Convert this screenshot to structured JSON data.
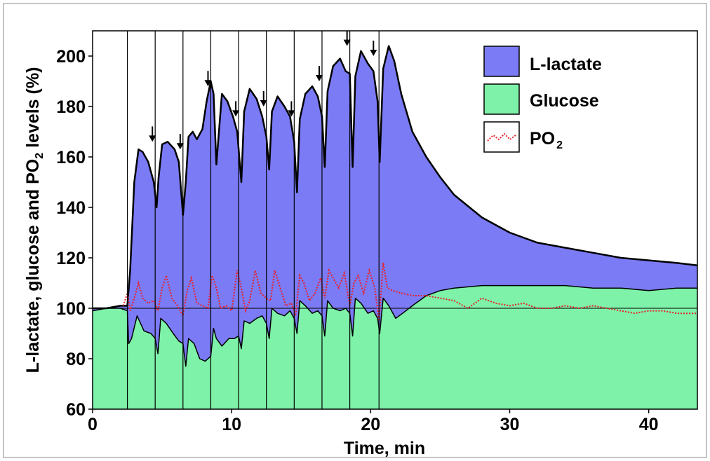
{
  "chart_data": {
    "type": "area",
    "xlabel": "Time, min",
    "ylabel_parts": [
      "L-lactate, glucose and PO",
      "2",
      " levels (%)"
    ],
    "xlim": [
      0,
      43.5
    ],
    "ylim": [
      60,
      210
    ],
    "xticks": [
      0,
      10,
      20,
      30,
      40
    ],
    "yticks": [
      60,
      80,
      100,
      120,
      140,
      160,
      180,
      200
    ],
    "xtick_labels": [
      "0",
      "10",
      "20",
      "30",
      "40"
    ],
    "ytick_labels": [
      "60",
      "80",
      "100",
      "120",
      "140",
      "160",
      "180",
      "200"
    ],
    "baseline": 100,
    "legend_position": "top-right",
    "legend": [
      {
        "label": "L-lactate",
        "color": "#7b7bf5",
        "style": "fill"
      },
      {
        "label": "Glucose",
        "color": "#7ef2a8",
        "style": "fill"
      },
      {
        "label_main": "PO",
        "label_sub": "2",
        "color": "#e8202a",
        "style": "dotted-line"
      }
    ],
    "stimulation_times": [
      2.5,
      4.5,
      6.5,
      8.5,
      10.5,
      12.5,
      14.5,
      16.5,
      18.5,
      20.6
    ],
    "arrow_points": [
      [
        4.3,
        166
      ],
      [
        6.3,
        163
      ],
      [
        8.3,
        188
      ],
      [
        10.3,
        176
      ],
      [
        12.3,
        180
      ],
      [
        14.3,
        176
      ],
      [
        16.3,
        190
      ],
      [
        18.3,
        204
      ],
      [
        20.2,
        200
      ]
    ],
    "series": [
      {
        "name": "L-lactate",
        "color": "#7b7bf5",
        "x": [
          0,
          1,
          2,
          2.5,
          2.7,
          3.0,
          3.3,
          3.6,
          4.0,
          4.4,
          4.6,
          4.75,
          5.0,
          5.4,
          5.9,
          6.2,
          6.5,
          6.7,
          6.9,
          7.2,
          7.5,
          7.9,
          8.2,
          8.5,
          8.7,
          8.9,
          9.3,
          9.7,
          10.1,
          10.4,
          10.7,
          10.9,
          11.3,
          11.8,
          12.2,
          12.5,
          12.7,
          12.9,
          13.3,
          13.8,
          14.2,
          14.5,
          14.7,
          14.9,
          15.3,
          15.8,
          16.2,
          16.5,
          16.7,
          16.9,
          17.3,
          17.8,
          18.2,
          18.5,
          18.7,
          18.9,
          19.3,
          19.8,
          20.2,
          20.5,
          20.65,
          20.9,
          21.3,
          21.7,
          22.2,
          23,
          24,
          25,
          26,
          28,
          30,
          32,
          34,
          36,
          38,
          40,
          42,
          43.5
        ],
        "y": [
          100,
          100,
          101,
          101,
          115,
          150,
          163,
          162,
          158,
          150,
          140,
          152,
          165,
          166,
          163,
          158,
          137,
          150,
          168,
          170,
          167,
          171,
          182,
          190,
          185,
          157,
          185,
          182,
          176,
          170,
          150,
          178,
          187,
          183,
          176,
          168,
          155,
          178,
          184,
          180,
          176,
          166,
          146,
          175,
          185,
          188,
          184,
          176,
          156,
          186,
          196,
          199,
          194,
          193,
          156,
          192,
          202,
          197,
          194,
          182,
          158,
          195,
          204,
          198,
          185,
          170,
          160,
          152,
          145,
          136,
          130,
          126,
          124,
          122,
          120,
          119,
          118,
          117
        ]
      },
      {
        "name": "Glucose",
        "color": "#7ef2a8",
        "x": [
          0,
          1,
          2,
          2.5,
          2.6,
          2.8,
          3.2,
          3.7,
          4.2,
          4.5,
          4.7,
          4.9,
          5.3,
          5.8,
          6.2,
          6.5,
          6.7,
          6.9,
          7.3,
          7.7,
          8.1,
          8.5,
          8.7,
          8.9,
          9.3,
          9.8,
          10.2,
          10.5,
          10.7,
          10.9,
          11.3,
          11.8,
          12.2,
          12.5,
          12.7,
          12.9,
          13.3,
          13.8,
          14.2,
          14.5,
          14.7,
          14.9,
          15.3,
          15.8,
          16.2,
          16.5,
          16.7,
          16.9,
          17.3,
          17.8,
          18.2,
          18.5,
          18.7,
          18.9,
          19.3,
          19.8,
          20.2,
          20.5,
          20.65,
          20.9,
          21.3,
          21.8,
          22.3,
          23,
          24,
          25,
          26,
          28,
          30,
          32,
          34,
          36,
          38,
          40,
          42,
          43.5
        ],
        "y": [
          99,
          100,
          100,
          99,
          86,
          88,
          97,
          91,
          90,
          88,
          82,
          96,
          94,
          90,
          87,
          86,
          77,
          88,
          86,
          80,
          79,
          81,
          92,
          88,
          85,
          88,
          88,
          89,
          84,
          95,
          94,
          96,
          97,
          94,
          88,
          100,
          98,
          97,
          99,
          96,
          90,
          103,
          101,
          98,
          99,
          97,
          89,
          103,
          100,
          99,
          100,
          98,
          89,
          104,
          102,
          98,
          99,
          96,
          90,
          104,
          101,
          96,
          98,
          101,
          105,
          107,
          108,
          109,
          109,
          109,
          109,
          108,
          108,
          107,
          108,
          108
        ]
      },
      {
        "name": "PO2",
        "color": "#e8202a",
        "x": [
          2.2,
          2.5,
          2.7,
          3.0,
          3.3,
          3.6,
          4.0,
          4.4,
          4.7,
          5.0,
          5.3,
          5.7,
          6.1,
          6.5,
          6.8,
          7.1,
          7.5,
          7.9,
          8.3,
          8.6,
          8.9,
          9.2,
          9.6,
          10.0,
          10.4,
          10.7,
          11.0,
          11.3,
          11.7,
          12.1,
          12.5,
          12.8,
          13.1,
          13.5,
          13.9,
          14.3,
          14.6,
          14.9,
          15.2,
          15.6,
          16.0,
          16.4,
          16.7,
          17.0,
          17.3,
          17.7,
          18.1,
          18.5,
          18.8,
          19.1,
          19.5,
          19.9,
          20.3,
          20.6,
          20.9,
          21.2,
          21.6,
          22.2,
          23,
          24,
          25,
          26,
          27,
          28,
          29,
          30,
          31,
          32,
          33,
          34,
          35,
          36,
          37,
          38,
          39,
          40,
          41,
          42,
          43.5
        ],
        "y": [
          101,
          106,
          99,
          104,
          110,
          104,
          102,
          103,
          99,
          108,
          113,
          104,
          101,
          97,
          107,
          112,
          102,
          101,
          100,
          113,
          108,
          100,
          101,
          99,
          115,
          108,
          99,
          103,
          115,
          106,
          104,
          103,
          115,
          108,
          101,
          102,
          97,
          113,
          110,
          103,
          106,
          112,
          104,
          115,
          112,
          108,
          114,
          101,
          110,
          113,
          106,
          115,
          108,
          95,
          118,
          108,
          107,
          106,
          105,
          105,
          104,
          103,
          100,
          104,
          102,
          101,
          102,
          100,
          100,
          101,
          100,
          101,
          100,
          99,
          98,
          99,
          99,
          98,
          98
        ]
      }
    ]
  }
}
